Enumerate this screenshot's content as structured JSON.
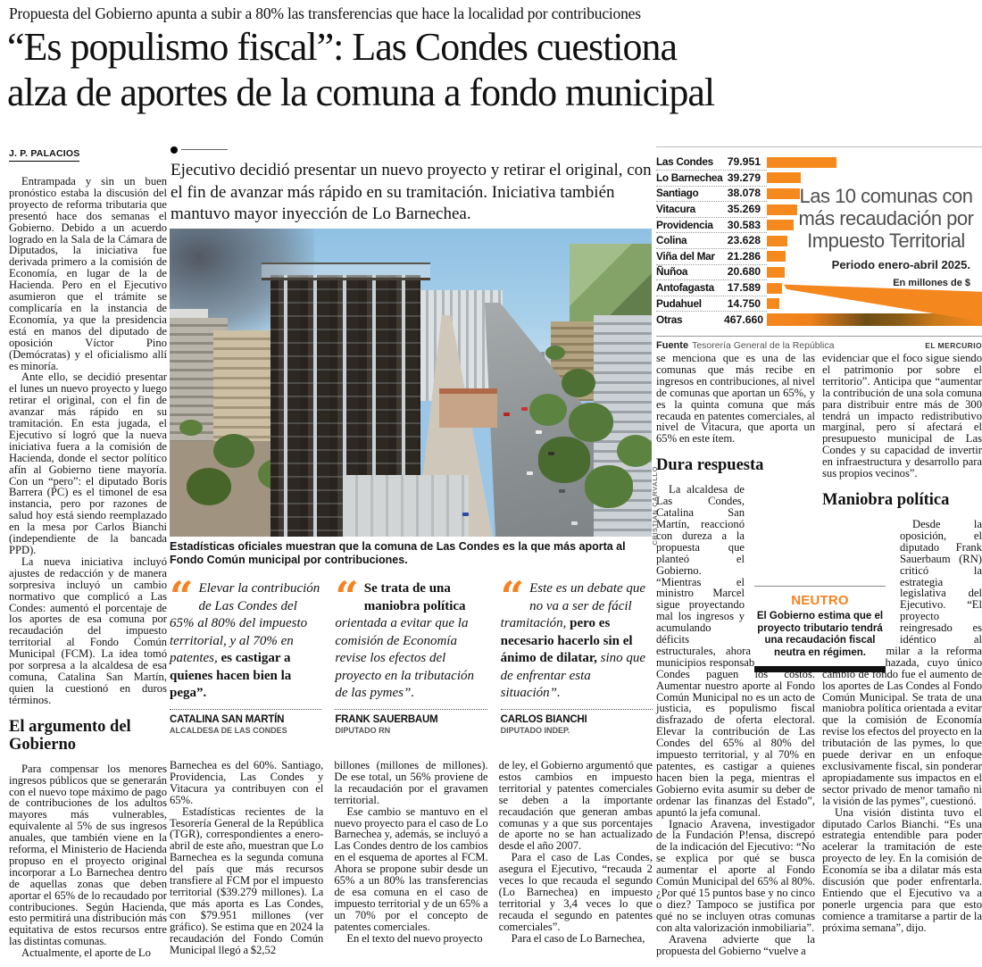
{
  "kicker": "Propuesta del Gobierno apunta a subir a 80% las transferencias que hace la localidad por contribuciones",
  "headline": {
    "line1": "“Es populismo fiscal”: Las Condes cuestiona",
    "line2": "alza de aportes de la comuna a fondo municipal"
  },
  "lede": "Ejecutivo decidió presentar un nuevo proyecto y retirar el original, con el fin de avanzar más rápido en su tramitación. Iniciativa también mantuvo mayor inyección de Lo Barnechea.",
  "photo": {
    "caption": "Estadísticas oficiales muestran que la comuna de Las Condes es la que más aporta al Fondo Común municipal por contribuciones.",
    "credit": "CRISTIAN CARVALLO"
  },
  "chart_data": {
    "type": "bar",
    "orientation": "horizontal",
    "title": "Las 10 comunas con más recaudación por Impuesto Territorial",
    "title_lines": [
      "Las 10 comunas con",
      "más recaudación por",
      "Impuesto Territorial"
    ],
    "subtitle": "Periodo enero-abril 2025.",
    "unit_label": "En millones de $",
    "categories": [
      "Las Condes",
      "Lo Barnechea",
      "Santiago",
      "Vitacura",
      "Providencia",
      "Colina",
      "Viña del Mar",
      "Ñuñoa",
      "Antofagasta",
      "Pudahuel",
      "Otras"
    ],
    "values": [
      79951,
      39279,
      38078,
      35269,
      30583,
      23628,
      21286,
      20680,
      17589,
      14750,
      467660
    ],
    "value_labels": [
      "79.951",
      "39.279",
      "38.078",
      "35.269",
      "30.583",
      "23.628",
      "21.286",
      "20.680",
      "17.589",
      "14.750",
      "467.660"
    ],
    "bar_color": "#f6891e",
    "source_label": "Fuente",
    "source": "Tesorería General de la República",
    "credit": "EL MERCURIO"
  },
  "article": {
    "byline": "J. P. PALACIOS",
    "col1": {
      "p1": "Entrampada y sin un buen pronóstico estaba la discusión del proyecto de reforma tributaria que presentó hace dos semanas el Gobierno. Debido a un acuerdo logrado en la Sala de la Cámara de Diputados, la iniciativa fue derivada primero a la comisión de Economía, en lugar de la de Hacienda. Pero en el Ejecutivo asumieron que el trámite se complicaría en la instancia de Economía, ya que la presidencia está en manos del diputado de oposición Víctor Pino (Demócratas) y el oficialismo allí es minoría.",
      "p2": "Ante ello, se decidió presentar el lunes un nuevo proyecto y luego retirar el original, con el fin de avanzar más rápido en su tramitación. En esta jugada, el Ejecutivo sí logró que la nueva iniciativa fuera a la comisión de Hacienda, donde el sector político afín al Gobierno tiene mayoría. Con un “pero”: el diputado Boris Barrera (PC) es el timonel de esa instancia, pero por razones de salud hoy está siendo reemplazado en la mesa por Carlos Bianchi (independiente de la bancada PPD).",
      "p3": "La nueva iniciativa incluyó ajustes de redacción y de manera sorpresiva incluyó un cambio normativo que complicó a Las Condes: aumentó el porcentaje de los aportes de esa comuna por recaudación del impuesto territorial al Fondo Común Municipal (FCM). La idea tomó por sorpresa a la alcaldesa de esa comuna, Catalina San Martín, quien la cuestionó en duros términos.",
      "subhead": "El argumento del Gobierno",
      "p4": "Para compensar los menores ingresos públicos que se generarán con el nuevo tope máximo de pago de contribuciones de los adultos mayores más vulnerables, equivalente al 5% de sus ingresos anuales, que también viene en la reforma, el Ministerio de Hacienda propuso en el proyecto original incorporar a Lo Barnechea dentro de aquellas zonas que deben aportar el 65% de lo recaudado por contribuciones. Según Hacienda, esto permitirá una distribución más equitativa de estos recursos entre las distintas comunas.",
      "p5": "Actualmente, el aporte de Lo"
    },
    "colA": {
      "p1": "Barnechea es del 60%. Santiago, Providencia, Las Condes y Vitacura ya contribuyen con el 65%.",
      "p2": "Estadísticas recientes de la Tesorería General de la República (TGR), correspondientes a enero-abril de este año, muestran que Lo Barnechea es la segunda comuna del país que más recursos transfiere al FCM por el impuesto territorial ($39.279 millones). La que más aporta es Las Condes, con $79.951 millones (ver gráfico). Se estima que en 2024 la recaudación del Fondo Común Municipal llegó a $2,52"
    },
    "colB": {
      "p1": "billones (millones de millones). De ese total, un 56% proviene de la recaudación por el gravamen territorial.",
      "p2": "Ese cambio se mantuvo en el nuevo proyecto para el caso de Lo Barnechea y, además, se incluyó a Las Condes dentro de los cambios en el esquema de aportes al FCM. Ahora se propone subir desde un 65% a un 80% las transferencias de esa comuna en el caso de impuesto territorial y de un 65% a un 70% por el concepto de patentes comerciales.",
      "p3": "En el texto del nuevo proyecto"
    },
    "colC": {
      "p1": "de ley, el Gobierno argumentó que estos cambios en impuesto territorial y patentes comerciales se deben a la importante recaudación que generan ambas comunas y a que sus porcentajes de aporte no se han actualizado desde el año 2007.",
      "p2": "Para el caso de Las Condes, asegura el Ejecutivo, “recauda 2 veces lo que recauda el segundo (Lo Barnechea) en impuesto territorial y 3,4 veces lo que recauda el segundo en patentes comerciales”.",
      "p3": "Para el caso de Lo Barnechea,"
    },
    "col4": {
      "p1": "se menciona que es una de las comunas que más recibe en ingresos en contribuciones, al nivel de comunas que aportan un 65%, y es la quinta comuna que más recauda en patentes comerciales, al nivel de Vitacura, que aporta un 65% en este ítem.",
      "subhead": "Dura respuesta",
      "p2": "La alcaldesa de Las Condes, Catalina San Martín, reaccionó con dureza a la propuesta que planteó el Gobierno. “Mientras el ministro Marcel sigue proyectando mal los ingresos y acumulando déficits estructurales, ahora quiere que municipios responsables como Las Condes paguen los costos. Aumentar nuestro aporte al Fondo Común Municipal no es un acto de justicia, es populismo fiscal disfrazado de oferta electoral. Elevar la contribución de Las Condes del 65% al 80% del impuesto territorial, y al 70% en patentes, es castigar a quienes hacen bien la pega, mientras el Gobierno evita asumir su deber de ordenar las finanzas del Estado”, apuntó la jefa comunal.",
      "p3": "Ignacio Aravena, investigador de la Fundación P!ensa, discrepó de la indicación del Ejecutivo: “No se explica por qué se busca aumentar el aporte al Fondo Común Municipal del 65% al 80%. ¿Por qué 15 puntos base y no cinco o diez? Tampoco se justifica por qué no se incluyen otras comunas con alta valorización inmobiliaria”.",
      "p4": "Aravena advierte que la propuesta del Gobierno “vuelve a"
    },
    "col5": {
      "p1": "evidenciar que el foco sigue siendo el patrimonio por sobre el territorio”. Anticipa que “aumentar la contribución de una sola comuna para distribuir entre más de 300 tendrá un impacto redistributivo marginal, pero sí afectará el presupuesto municipal de Las Condes y su capacidad de invertir en infraestructura y desarrollo para sus propios vecinos”.",
      "subhead": "Maniobra política",
      "p2": "Desde la oposición, el diputado Frank Sauerbaum (RN) criticó la estrategia legislativa del Ejecutivo. “El proyecto reingresado es idéntico al original y similar a la reforma tributaria rechazada, cuyo único cambio de fondo fue el aumento de los aportes de Las Condes al Fondo Común Municipal. Se trata de una maniobra política orientada a evitar que la comisión de Economía revise los efectos del proyecto en la tributación de las pymes, lo que puede derivar en un enfoque exclusivamente fiscal, sin ponderar apropiadamente sus impactos en el sector privado de menor tamaño ni la visión de las pymes”, cuestionó.",
      "p3": "Una visión distinta tuvo el diputado Carlos Bianchi. “Es una estrategia entendible para poder acelerar la tramitación de este proyecto de ley. En la comisión de Economía se iba a dilatar más esta discusión que poder enfrentarla. Entiendo que el Ejecutivo va a ponerle urgencia para que esto comience a tramitarse a partir de la próxima semana”, dijo."
    }
  },
  "quotes": [
    {
      "icon": "“",
      "parts": [
        {
          "style": "it",
          "text": "Elevar la contribución de Las Condes del 65% al 80% del impuesto territorial, y al 70% en patentes, "
        },
        {
          "style": "bd",
          "text": "es castigar a quienes hacen bien la pega”."
        },
        {
          "style": "it",
          "text": ""
        }
      ],
      "name": "CATALINA SAN MARTÍN",
      "role": "ALCALDESA DE LAS CONDES"
    },
    {
      "icon": "“",
      "parts": [
        {
          "style": "bd",
          "text": "Se trata de una maniobra política "
        },
        {
          "style": "it",
          "text": "orientada a evitar que la comisión de Economía revise los efectos del proyecto en la tributación de las pymes”."
        },
        {
          "style": "it",
          "text": ""
        }
      ],
      "name": "FRANK SAUERBAUM",
      "role": "DIPUTADO RN"
    },
    {
      "icon": "“",
      "parts": [
        {
          "style": "it",
          "text": "Este es un debate que no va a ser de fácil tramitación, "
        },
        {
          "style": "bd",
          "text": "pero es necesario hacerlo sin el ánimo de dilatar, "
        },
        {
          "style": "it",
          "text": "sino que de enfrentar esta situación”."
        }
      ],
      "name": "CARLOS BIANCHI",
      "role": "DIPUTADO INDEP."
    }
  ],
  "neutro": {
    "title": "NEUTRO",
    "text": "El Gobierno estima que el proyecto tributario tendrá una recaudación fiscal neutra en régimen."
  }
}
